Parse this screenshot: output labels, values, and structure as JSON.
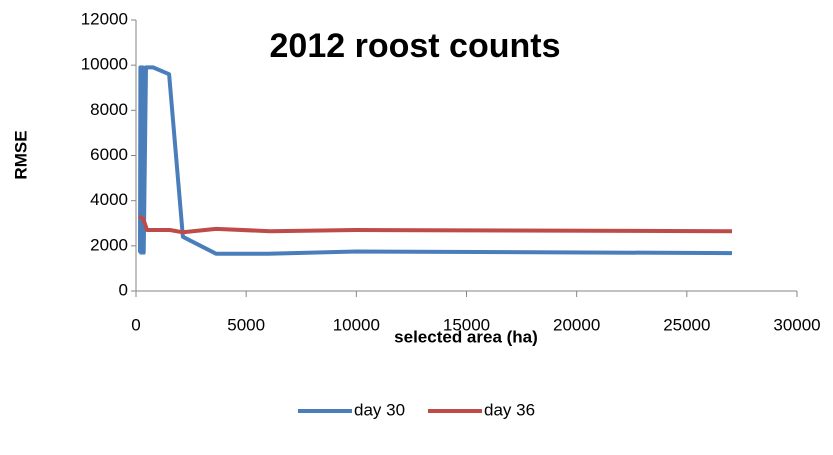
{
  "chart_data": {
    "type": "line",
    "title": "2012 roost counts",
    "x_label": "selected area (ha)",
    "y_label": "RMSE",
    "xlim": [
      0,
      30000
    ],
    "xticks": [
      0,
      5000,
      10000,
      15000,
      20000,
      25000,
      30000
    ],
    "ylim": [
      0,
      12000
    ],
    "yticks": [
      0,
      2000,
      4000,
      6000,
      8000,
      10000,
      12000
    ],
    "grid": false,
    "legend": "bottom",
    "series": [
      {
        "name": "day 30",
        "color": "#4a7ebb",
        "x": [
          180,
          200,
          230,
          300,
          350,
          454,
          770,
          1500,
          2130,
          3630,
          6000,
          10000,
          27050
        ],
        "values": [
          1700,
          9900,
          1700,
          9900,
          1700,
          9900,
          9900,
          9600,
          2400,
          1650,
          1650,
          1750,
          1680
        ]
      },
      {
        "name": "day 36",
        "color": "#be4b48",
        "x": [
          140,
          320,
          500,
          1540,
          2130,
          3630,
          6080,
          10000,
          27050
        ],
        "values": [
          3300,
          3200,
          2700,
          2700,
          2600,
          2750,
          2650,
          2700,
          2650
        ]
      }
    ]
  }
}
